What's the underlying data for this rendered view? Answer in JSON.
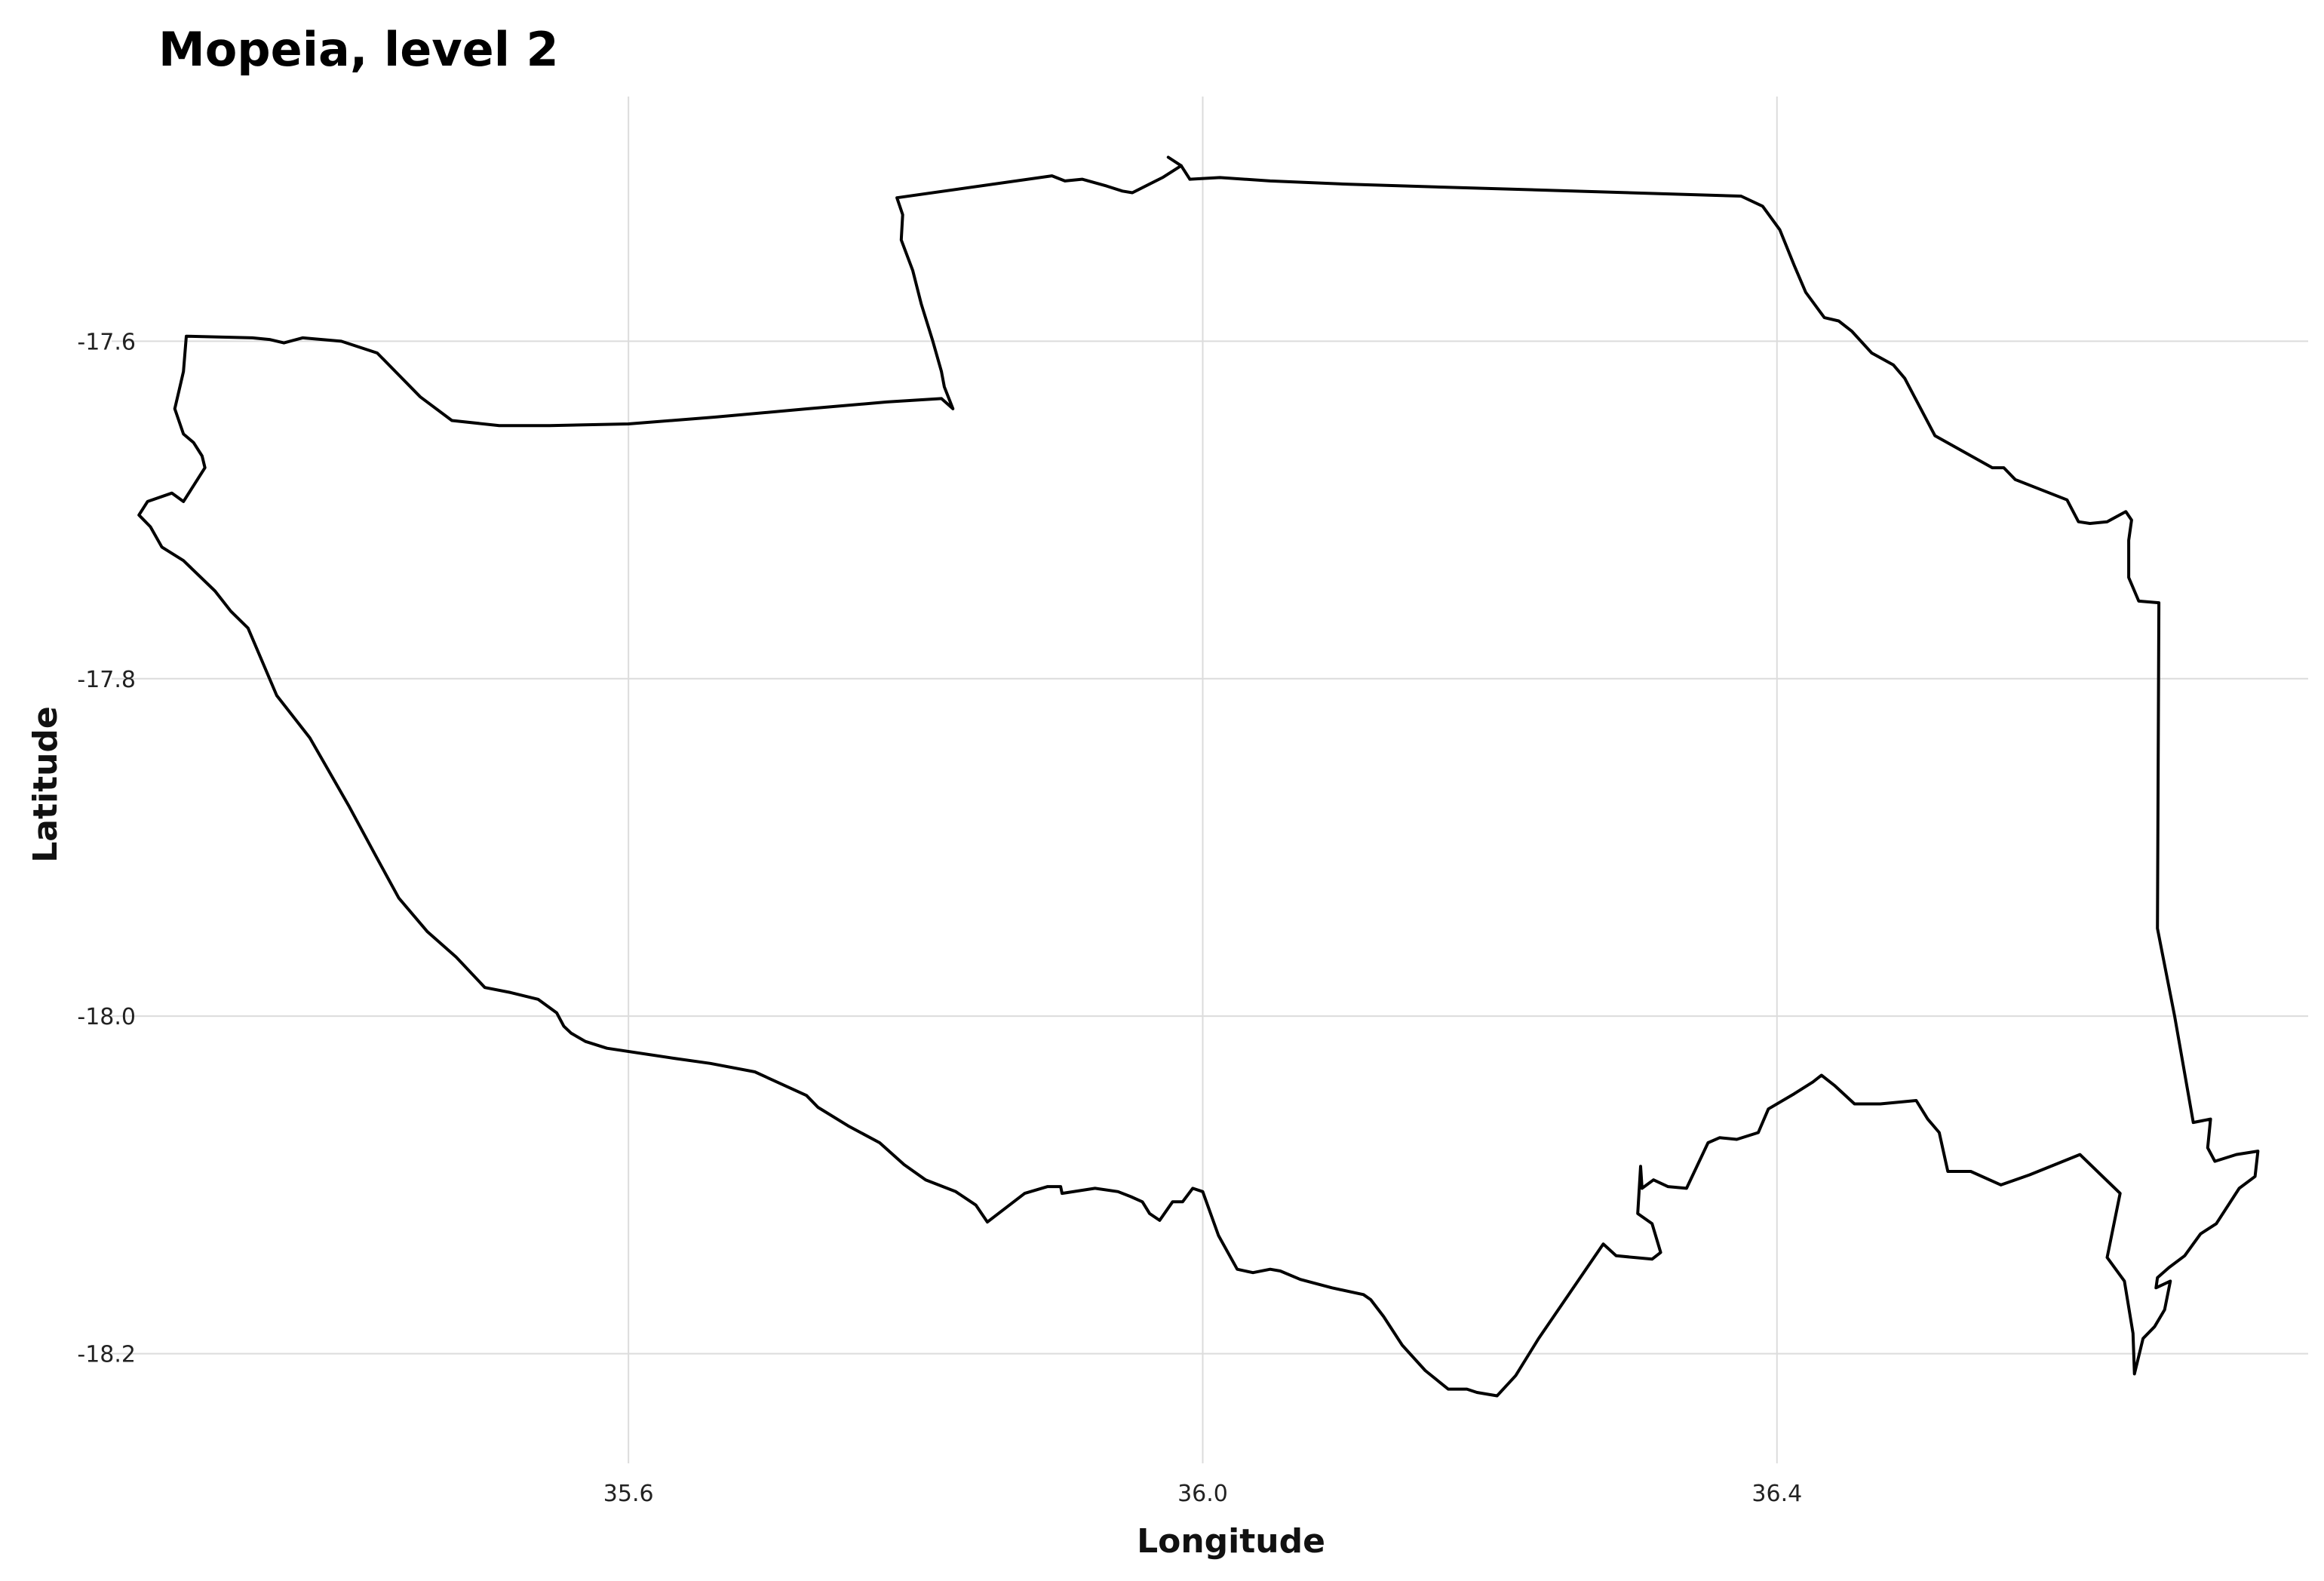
{
  "chart_data": {
    "type": "map",
    "title": "Mopeia, level 2",
    "xlabel": "Longitude",
    "ylabel": "Latitude",
    "xlim": [
      35.24,
      36.77
    ],
    "ylim": [
      -18.265,
      -17.455
    ],
    "x_ticks": [
      35.6,
      36.0,
      36.4
    ],
    "x_tick_labels": [
      "35.6",
      "36.0",
      "36.4"
    ],
    "y_ticks": [
      -17.6,
      -17.8,
      -18.0,
      -18.2
    ],
    "y_tick_labels": [
      "-17.6",
      "-17.8",
      "-18.0",
      "-18.2"
    ],
    "grid": true,
    "region": "Mopeia",
    "outline_color": "#000000",
    "boundary": [
      [
        35.991,
        -17.504
      ],
      [
        36.012,
        -17.503
      ],
      [
        36.047,
        -17.505
      ],
      [
        36.102,
        -17.507
      ],
      [
        36.375,
        -17.514
      ],
      [
        36.39,
        -17.52
      ],
      [
        36.402,
        -17.534
      ],
      [
        36.412,
        -17.555
      ],
      [
        36.42,
        -17.571
      ],
      [
        36.433,
        -17.586
      ],
      [
        36.443,
        -17.588
      ],
      [
        36.452,
        -17.594
      ],
      [
        36.466,
        -17.607
      ],
      [
        36.481,
        -17.614
      ],
      [
        36.489,
        -17.622
      ],
      [
        36.51,
        -17.656
      ],
      [
        36.55,
        -17.675
      ],
      [
        36.558,
        -17.675
      ],
      [
        36.566,
        -17.682
      ],
      [
        36.602,
        -17.694
      ],
      [
        36.61,
        -17.707
      ],
      [
        36.618,
        -17.708
      ],
      [
        36.63,
        -17.707
      ],
      [
        36.643,
        -17.701
      ],
      [
        36.647,
        -17.706
      ],
      [
        36.645,
        -17.718
      ],
      [
        36.645,
        -17.74
      ],
      [
        36.652,
        -17.754
      ],
      [
        36.666,
        -17.755
      ],
      [
        36.665,
        -17.948
      ],
      [
        36.677,
        -18.0
      ],
      [
        36.69,
        -18.063
      ],
      [
        36.702,
        -18.061
      ],
      [
        36.7,
        -18.078
      ],
      [
        36.705,
        -18.086
      ],
      [
        36.72,
        -18.082
      ],
      [
        36.735,
        -18.08
      ],
      [
        36.733,
        -18.095
      ],
      [
        36.722,
        -18.102
      ],
      [
        36.706,
        -18.123
      ],
      [
        36.695,
        -18.129
      ],
      [
        36.684,
        -18.142
      ],
      [
        36.673,
        -18.149
      ],
      [
        36.665,
        -18.155
      ],
      [
        36.664,
        -18.161
      ],
      [
        36.674,
        -18.157
      ],
      [
        36.67,
        -18.174
      ],
      [
        36.663,
        -18.184
      ],
      [
        36.655,
        -18.191
      ],
      [
        36.649,
        -18.212
      ],
      [
        36.648,
        -18.188
      ],
      [
        36.642,
        -18.157
      ],
      [
        36.63,
        -18.143
      ],
      [
        36.639,
        -18.105
      ],
      [
        36.611,
        -18.082
      ],
      [
        36.576,
        -18.094
      ],
      [
        36.556,
        -18.1
      ],
      [
        36.535,
        -18.092
      ],
      [
        36.519,
        -18.092
      ],
      [
        36.513,
        -18.069
      ],
      [
        36.505,
        -18.061
      ],
      [
        36.497,
        -18.05
      ],
      [
        36.472,
        -18.052
      ],
      [
        36.454,
        -18.052
      ],
      [
        36.44,
        -18.041
      ],
      [
        36.431,
        -18.035
      ],
      [
        36.425,
        -18.039
      ],
      [
        36.412,
        -18.046
      ],
      [
        36.394,
        -18.055
      ],
      [
        36.387,
        -18.069
      ],
      [
        36.372,
        -18.073
      ],
      [
        36.36,
        -18.072
      ],
      [
        36.352,
        -18.075
      ],
      [
        36.337,
        -18.102
      ],
      [
        36.324,
        -18.101
      ],
      [
        36.314,
        -18.097
      ],
      [
        36.306,
        -18.102
      ],
      [
        36.305,
        -18.089
      ],
      [
        36.303,
        -18.117
      ],
      [
        36.313,
        -18.123
      ],
      [
        36.319,
        -18.14
      ],
      [
        36.313,
        -18.144
      ],
      [
        36.288,
        -18.142
      ],
      [
        36.279,
        -18.135
      ],
      [
        36.234,
        -18.191
      ],
      [
        36.218,
        -18.213
      ],
      [
        36.205,
        -18.225
      ],
      [
        36.191,
        -18.223
      ],
      [
        36.184,
        -18.221
      ],
      [
        36.171,
        -18.221
      ],
      [
        36.155,
        -18.21
      ],
      [
        36.139,
        -18.195
      ],
      [
        36.126,
        -18.178
      ],
      [
        36.117,
        -18.168
      ],
      [
        36.112,
        -18.165
      ],
      [
        36.09,
        -18.161
      ],
      [
        36.068,
        -18.156
      ],
      [
        36.054,
        -18.151
      ],
      [
        36.047,
        -18.15
      ],
      [
        36.035,
        -18.152
      ],
      [
        36.024,
        -18.15
      ],
      [
        36.011,
        -18.13
      ],
      [
        36.0,
        -18.104
      ],
      [
        35.993,
        -18.102
      ],
      [
        35.986,
        -18.11
      ],
      [
        35.979,
        -18.11
      ],
      [
        35.97,
        -18.121
      ],
      [
        35.963,
        -18.117
      ],
      [
        35.958,
        -18.11
      ],
      [
        35.95,
        -18.107
      ],
      [
        35.941,
        -18.104
      ],
      [
        35.925,
        -18.102
      ],
      [
        35.902,
        -18.105
      ],
      [
        35.901,
        -18.101
      ],
      [
        35.892,
        -18.101
      ],
      [
        35.876,
        -18.105
      ],
      [
        35.85,
        -18.122
      ],
      [
        35.842,
        -18.112
      ],
      [
        35.828,
        -18.104
      ],
      [
        35.807,
        -18.097
      ],
      [
        35.792,
        -18.088
      ],
      [
        35.775,
        -18.075
      ],
      [
        35.753,
        -18.065
      ],
      [
        35.732,
        -18.054
      ],
      [
        35.724,
        -18.047
      ],
      [
        35.706,
        -18.04
      ],
      [
        35.688,
        -18.033
      ],
      [
        35.657,
        -18.028
      ],
      [
        35.632,
        -18.025
      ],
      [
        35.585,
        -18.019
      ],
      [
        35.57,
        -18.015
      ],
      [
        35.56,
        -18.01
      ],
      [
        35.555,
        -18.006
      ],
      [
        35.55,
        -17.998
      ],
      [
        35.537,
        -17.99
      ],
      [
        35.518,
        -17.986
      ],
      [
        35.5,
        -17.983
      ],
      [
        35.48,
        -17.965
      ],
      [
        35.46,
        -17.95
      ],
      [
        35.44,
        -17.93
      ],
      [
        35.424,
        -17.905
      ],
      [
        35.405,
        -17.875
      ],
      [
        35.378,
        -17.835
      ],
      [
        35.355,
        -17.81
      ],
      [
        35.335,
        -17.77
      ],
      [
        35.323,
        -17.76
      ],
      [
        35.312,
        -17.748
      ],
      [
        35.29,
        -17.73
      ],
      [
        35.275,
        -17.722
      ],
      [
        35.267,
        -17.71
      ],
      [
        35.259,
        -17.703
      ],
      [
        35.265,
        -17.695
      ],
      [
        35.282,
        -17.69
      ],
      [
        35.29,
        -17.695
      ],
      [
        35.305,
        -17.675
      ],
      [
        35.303,
        -17.668
      ],
      [
        35.297,
        -17.66
      ],
      [
        35.29,
        -17.655
      ],
      [
        35.284,
        -17.64
      ],
      [
        35.287,
        -17.629
      ],
      [
        35.29,
        -17.618
      ],
      [
        35.292,
        -17.597
      ],
      [
        35.338,
        -17.598
      ],
      [
        35.35,
        -17.599
      ],
      [
        35.36,
        -17.601
      ],
      [
        35.373,
        -17.598
      ],
      [
        35.4,
        -17.6
      ],
      [
        35.425,
        -17.607
      ],
      [
        35.44,
        -17.62
      ],
      [
        35.455,
        -17.633
      ],
      [
        35.477,
        -17.647
      ],
      [
        35.51,
        -17.65
      ],
      [
        35.545,
        -17.65
      ],
      [
        35.6,
        -17.649
      ],
      [
        35.66,
        -17.645
      ],
      [
        35.725,
        -17.64
      ],
      [
        35.78,
        -17.636
      ],
      [
        35.818,
        -17.634
      ],
      [
        35.826,
        -17.64
      ],
      [
        35.82,
        -17.627
      ],
      [
        35.818,
        -17.618
      ],
      [
        35.812,
        -17.6
      ],
      [
        35.804,
        -17.578
      ],
      [
        35.798,
        -17.558
      ],
      [
        35.79,
        -17.54
      ],
      [
        35.791,
        -17.525
      ],
      [
        35.787,
        -17.515
      ],
      [
        35.895,
        -17.502
      ],
      [
        35.904,
        -17.505
      ],
      [
        35.916,
        -17.504
      ],
      [
        35.933,
        -17.508
      ],
      [
        35.944,
        -17.511
      ],
      [
        35.951,
        -17.512
      ],
      [
        35.972,
        -17.503
      ],
      [
        35.985,
        -17.496
      ],
      [
        35.991,
        -17.504
      ]
    ],
    "boundary_spur": [
      [
        35.985,
        -17.496
      ],
      [
        35.976,
        -17.491
      ]
    ]
  }
}
